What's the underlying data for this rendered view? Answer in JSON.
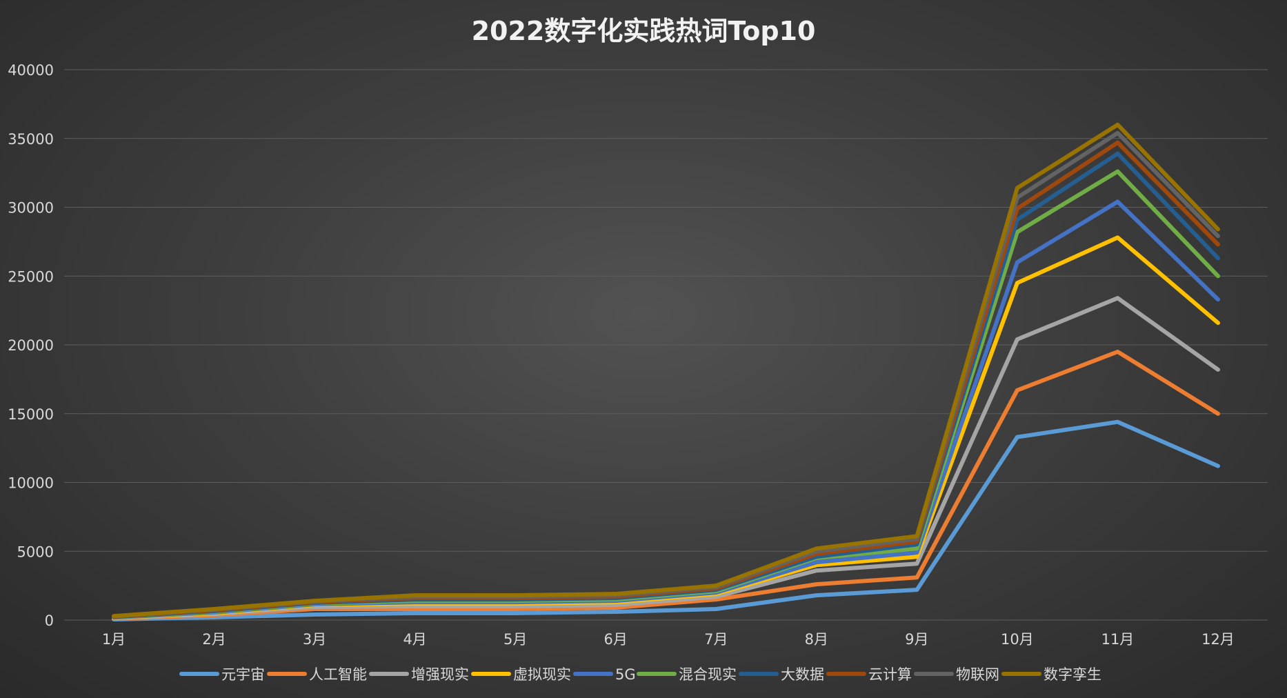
{
  "chart_data": {
    "type": "line",
    "stacked": true,
    "title": "2022数字化实践热词Top10",
    "categories": [
      "1月",
      "2月",
      "3月",
      "4月",
      "5月",
      "6月",
      "7月",
      "8月",
      "9月",
      "10月",
      "11月",
      "12月"
    ],
    "ylim": [
      0,
      40000
    ],
    "yticks": [
      0,
      5000,
      10000,
      15000,
      20000,
      25000,
      30000,
      35000,
      40000
    ],
    "grid": true,
    "legend": "bottom",
    "series": [
      {
        "name": "元宇宙",
        "color": "#5b9bd5",
        "values": [
          50,
          200,
          400,
          500,
          500,
          600,
          800,
          1800,
          2200,
          13300,
          14400,
          11200
        ]
      },
      {
        "name": "人工智能",
        "color": "#ed7d31",
        "values": [
          50,
          150,
          400,
          300,
          300,
          300,
          700,
          800,
          900,
          3400,
          5100,
          3800
        ]
      },
      {
        "name": "增强现实",
        "color": "#a5a5a5",
        "values": [
          40,
          80,
          150,
          200,
          200,
          200,
          200,
          1000,
          1000,
          3700,
          3900,
          3200
        ]
      },
      {
        "name": "虚拟现实",
        "color": "#ffc000",
        "values": [
          30,
          70,
          150,
          200,
          200,
          200,
          200,
          400,
          500,
          4100,
          4400,
          3400
        ]
      },
      {
        "name": "5G",
        "color": "#4472c4",
        "values": [
          20,
          50,
          50,
          100,
          100,
          100,
          100,
          200,
          300,
          1500,
          2600,
          1700
        ]
      },
      {
        "name": "混合现实",
        "color": "#70ad47",
        "values": [
          20,
          50,
          50,
          100,
          100,
          100,
          100,
          300,
          300,
          2200,
          2200,
          1700
        ]
      },
      {
        "name": "大数据",
        "color": "#255e91",
        "values": [
          20,
          50,
          50,
          100,
          100,
          100,
          100,
          100,
          300,
          900,
          1300,
          1300
        ]
      },
      {
        "name": "云计算",
        "color": "#9e480e",
        "values": [
          20,
          50,
          50,
          100,
          100,
          100,
          100,
          200,
          200,
          800,
          800,
          1000
        ]
      },
      {
        "name": "物联网",
        "color": "#636363",
        "values": [
          20,
          50,
          50,
          100,
          100,
          100,
          100,
          200,
          200,
          800,
          700,
          600
        ]
      },
      {
        "name": "数字孪生",
        "color": "#997300",
        "values": [
          20,
          50,
          50,
          100,
          100,
          100,
          100,
          200,
          200,
          700,
          600,
          500
        ]
      }
    ]
  }
}
